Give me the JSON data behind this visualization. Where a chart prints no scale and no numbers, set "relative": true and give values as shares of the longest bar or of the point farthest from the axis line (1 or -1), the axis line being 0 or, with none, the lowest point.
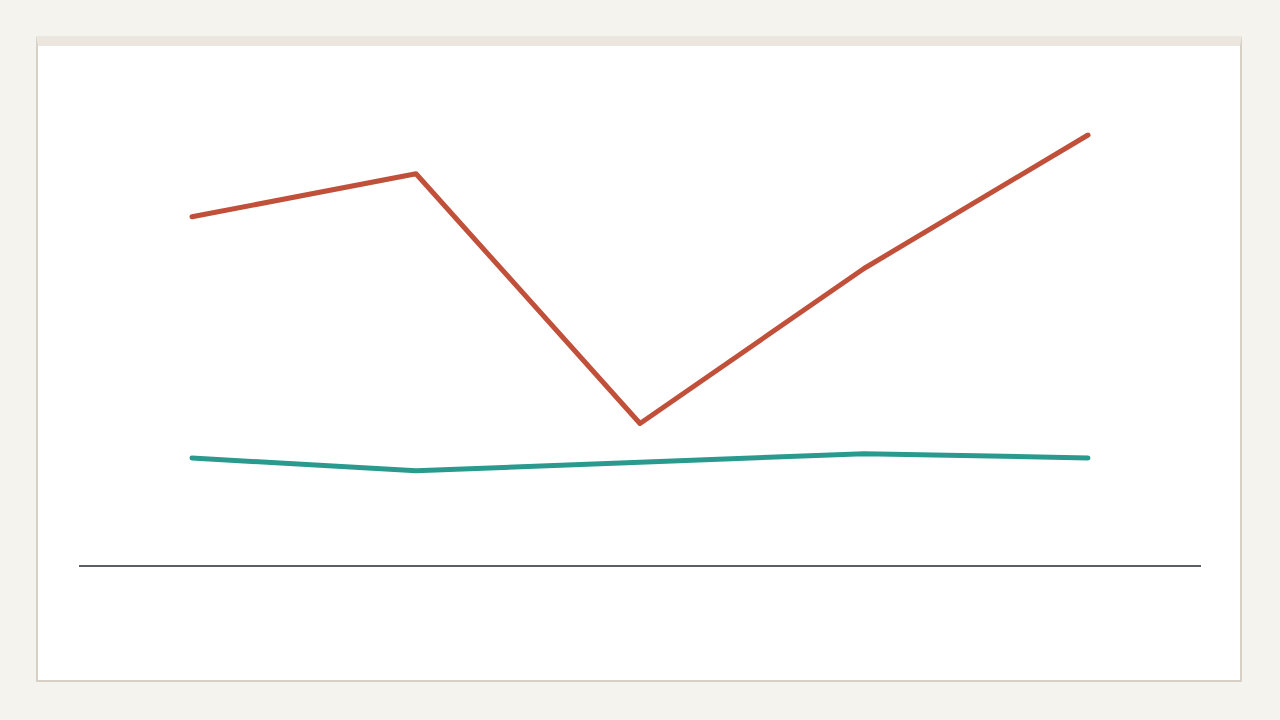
{
  "chart_data": {
    "type": "line",
    "relative": true,
    "legend": false,
    "marker": "none",
    "line_style": "solid",
    "categories": [
      null,
      null,
      null,
      null,
      null
    ],
    "series": [
      {
        "color": "#c0503a",
        "values": [
          0.81,
          0.91,
          0.33,
          0.69,
          1
        ]
      },
      {
        "color": "#2a9a8f",
        "values": [
          0.25,
          0.22,
          0.24,
          0.26,
          0.25
        ]
      }
    ]
  }
}
